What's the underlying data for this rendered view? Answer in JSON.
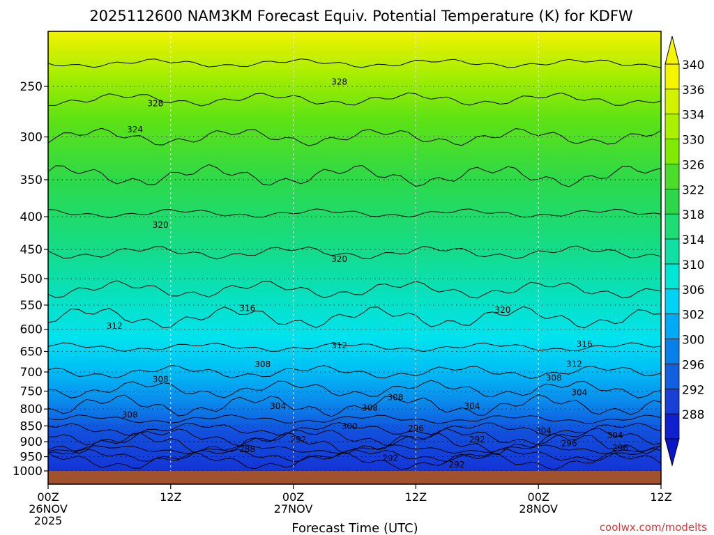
{
  "chart_data": {
    "type": "heatmap",
    "title": "2025112600 NAM3KM Forecast Equiv. Potential Temperature (K) for KDFW",
    "xlabel": "Forecast Time (UTC)",
    "ylabel": "",
    "x_ticks": [
      {
        "line1": "00Z",
        "line2": "26NOV",
        "line3": "2025",
        "hour": 0
      },
      {
        "line1": "12Z",
        "line2": "",
        "line3": "",
        "hour": 12
      },
      {
        "line1": "00Z",
        "line2": "27NOV",
        "line3": "",
        "hour": 24
      },
      {
        "line1": "12Z",
        "line2": "",
        "line3": "",
        "hour": 36
      },
      {
        "line1": "00Z",
        "line2": "28NOV",
        "line3": "",
        "hour": 48
      },
      {
        "line1": "12Z",
        "line2": "",
        "line3": "",
        "hour": 60
      }
    ],
    "xlim": [
      0,
      60
    ],
    "y_scale": "log-pressure",
    "y_ticks": [
      "250",
      "300",
      "350",
      "400",
      "450",
      "500",
      "550",
      "600",
      "650",
      "700",
      "750",
      "800",
      "850",
      "900",
      "950",
      "1000"
    ],
    "ylim": [
      1030,
      200
    ],
    "colorbar": {
      "labels": [
        "340",
        "336",
        "334",
        "330",
        "326",
        "322",
        "318",
        "314",
        "310",
        "306",
        "302",
        "300",
        "296",
        "292",
        "288"
      ],
      "colors": [
        "#f5f500",
        "#d2f200",
        "#aaf000",
        "#80ea00",
        "#4cdc2a",
        "#2cd84a",
        "#1edc74",
        "#10e0a6",
        "#00e6d6",
        "#00d2f6",
        "#00aaf6",
        "#0880ea",
        "#1060e0",
        "#1840d6",
        "#1020cc"
      ]
    },
    "contour_labels": [
      {
        "text": "328",
        "hour": 10.5,
        "p": 266
      },
      {
        "text": "328",
        "hour": 28.5,
        "p": 246
      },
      {
        "text": "324",
        "hour": 8.5,
        "p": 292
      },
      {
        "text": "320",
        "hour": 11,
        "p": 412
      },
      {
        "text": "320",
        "hour": 28.5,
        "p": 466
      },
      {
        "text": "320",
        "hour": 44.5,
        "p": 560
      },
      {
        "text": "316",
        "hour": 19.5,
        "p": 556
      },
      {
        "text": "316",
        "hour": 52.5,
        "p": 633
      },
      {
        "text": "312",
        "hour": 6.5,
        "p": 593
      },
      {
        "text": "312",
        "hour": 28.5,
        "p": 636
      },
      {
        "text": "312",
        "hour": 51.5,
        "p": 680
      },
      {
        "text": "308",
        "hour": 11,
        "p": 719
      },
      {
        "text": "308",
        "hour": 21,
        "p": 681
      },
      {
        "text": "308",
        "hour": 34,
        "p": 767
      },
      {
        "text": "308",
        "hour": 31.5,
        "p": 797
      },
      {
        "text": "308",
        "hour": 49.5,
        "p": 715
      },
      {
        "text": "308",
        "hour": 8,
        "p": 817
      },
      {
        "text": "304",
        "hour": 22.5,
        "p": 792
      },
      {
        "text": "304",
        "hour": 41.5,
        "p": 792
      },
      {
        "text": "304",
        "hour": 52,
        "p": 754
      },
      {
        "text": "304",
        "hour": 48.5,
        "p": 865
      },
      {
        "text": "304",
        "hour": 55.5,
        "p": 880
      },
      {
        "text": "300",
        "hour": 29.5,
        "p": 852
      },
      {
        "text": "296",
        "hour": 36,
        "p": 858
      },
      {
        "text": "296",
        "hour": 51,
        "p": 905
      },
      {
        "text": "296",
        "hour": 56,
        "p": 920
      },
      {
        "text": "292",
        "hour": 24.5,
        "p": 893
      },
      {
        "text": "292",
        "hour": 42,
        "p": 893
      },
      {
        "text": "292",
        "hour": 33.5,
        "p": 955
      },
      {
        "text": "292",
        "hour": 40,
        "p": 978
      },
      {
        "text": "288",
        "hour": 19.5,
        "p": 925
      }
    ],
    "grid": true,
    "legend": "right colorbar"
  },
  "credit": "coolwx.com/modelts"
}
